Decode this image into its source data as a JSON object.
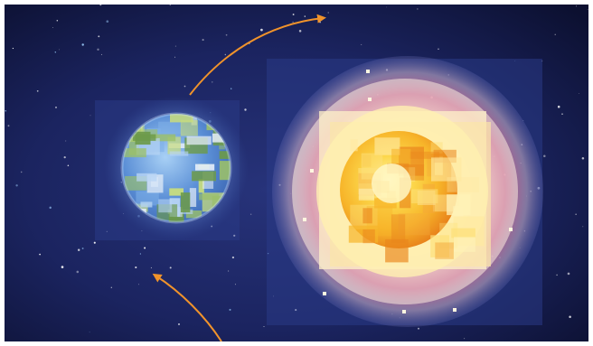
{
  "colors": {
    "space_dark": "#0c1030",
    "space_mid": "#1b2460",
    "space_light": "#27337a",
    "star": "#ffffff",
    "arrow": "#f0932b",
    "earth_ocean": "#5b8fd6",
    "earth_land": "#9bc06a",
    "earth_glow": "#3a5aa8",
    "sun_core": "#fff6b0",
    "sun_mid": "#f7b52a",
    "sun_orange": "#e9851c",
    "sun_pink": "#e0457a",
    "sun_halo": "#f6cfd8"
  },
  "icons": {
    "earth": "earth-planet-icon",
    "sun": "sun-star-icon",
    "orbit_top": "orbit-arrow-top-icon",
    "orbit_bottom": "orbit-arrow-bottom-icon"
  }
}
